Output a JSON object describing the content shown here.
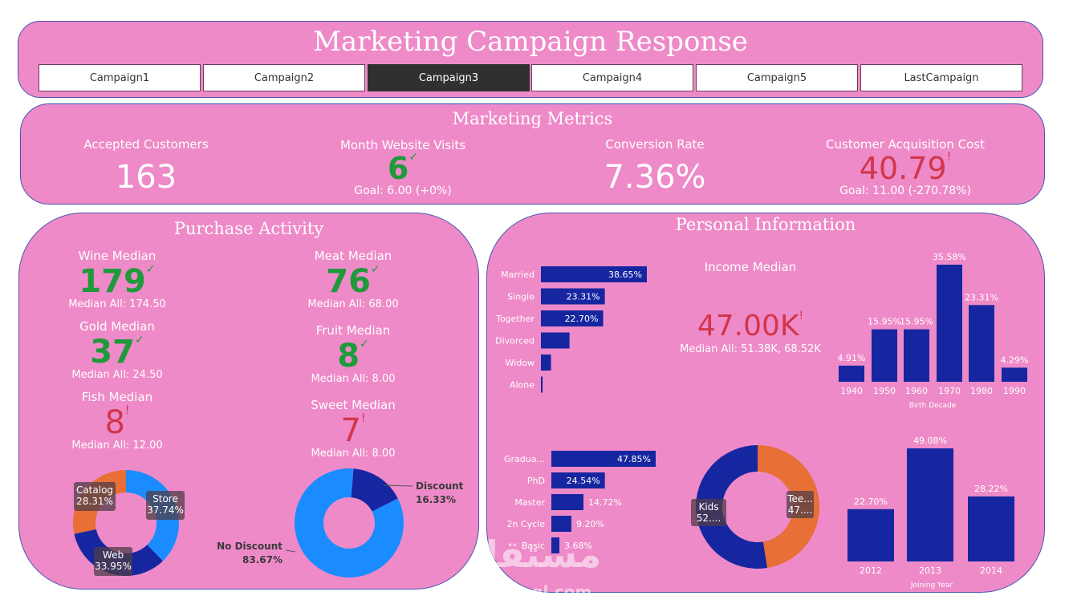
{
  "header": {
    "title": "Marketing Campaign Response",
    "tabs": [
      "Campaign1",
      "Campaign2",
      "Campaign3",
      "Campaign4",
      "Campaign5",
      "LastCampaign"
    ],
    "active_tab": "Campaign3"
  },
  "metrics": {
    "title": "Marketing Metrics",
    "accepted": {
      "label": "Accepted Customers",
      "value": "163"
    },
    "visits": {
      "label": "Month Website Visits",
      "value": "6",
      "mark": "✓",
      "goal": "Goal: 6.00 (+0%)"
    },
    "conversion": {
      "label": "Conversion Rate",
      "value": "7.36%"
    },
    "cac": {
      "label": "Customer Acquisition Cost",
      "value": "40.79",
      "mark": "!",
      "goal": "Goal: 11.00 (-270.78%)"
    }
  },
  "purchase": {
    "title": "Purchase Activity",
    "wine": {
      "label": "Wine Median",
      "value": "179",
      "mark": "✓",
      "sub": "Median All: 174.50"
    },
    "meat": {
      "label": "Meat Median",
      "value": "76",
      "mark": "✓",
      "sub": "Median All: 68.00"
    },
    "gold": {
      "label": "Gold Median",
      "value": "37",
      "mark": "✓",
      "sub": "Median All: 24.50"
    },
    "fruit": {
      "label": "Fruit Median",
      "value": "8",
      "mark": "✓",
      "sub": "Median All: 8.00"
    },
    "fish": {
      "label": "Fish Median",
      "value": "8",
      "mark": "!",
      "sub": "Median All: 12.00"
    },
    "sweet": {
      "label": "Sweet Median",
      "value": "7",
      "mark": "!",
      "sub": "Median All: 8.00"
    }
  },
  "personal": {
    "title": "Personal Information",
    "income": {
      "label": "Income Median",
      "value": "47.00K",
      "mark": "!",
      "sub": "Median All: 51.38K, 68.52K"
    }
  },
  "colors": {
    "panel": "#ee8ac8",
    "bar": "#1626a0",
    "good": "#1f9a3a",
    "bad": "#d2364a",
    "blue": "#1a8cff",
    "orange": "#e86f35",
    "navy": "#1626a0"
  },
  "watermark": {
    "arabic": "مستقل",
    "latin": "mostaql.com"
  },
  "chart_data": [
    {
      "type": "pie",
      "id": "channel",
      "title": "",
      "slices": [
        {
          "label": "Store",
          "value": 37.74,
          "text": "37.74%",
          "color": "#1a8cff"
        },
        {
          "label": "Web",
          "value": 33.95,
          "text": "33.95%",
          "color": "#1626a0"
        },
        {
          "label": "Catalog",
          "value": 28.31,
          "text": "28.31%",
          "color": "#e86f35"
        }
      ]
    },
    {
      "type": "pie",
      "id": "discount",
      "title": "",
      "slices": [
        {
          "label": "Discount",
          "value": 16.33,
          "text": "16.33%",
          "color": "#1626a0"
        },
        {
          "label": "No Discount",
          "value": 83.67,
          "text": "83.67%",
          "color": "#1a8cff"
        }
      ]
    },
    {
      "type": "bar",
      "id": "marital",
      "orientation": "horizontal",
      "categories": [
        "Married",
        "Single",
        "Together",
        "Divorced",
        "Widow",
        "Alone"
      ],
      "values": [
        38.65,
        23.31,
        22.7,
        10.43,
        3.68,
        0.61
      ],
      "labels": [
        "38.65%",
        "23.31%",
        "22.70%",
        "",
        "",
        ""
      ]
    },
    {
      "type": "bar",
      "id": "education",
      "orientation": "horizontal",
      "categories": [
        "Gradua...",
        "PhD",
        "Master",
        "2n Cycle",
        "Basic"
      ],
      "values": [
        47.85,
        24.54,
        14.72,
        9.2,
        3.68
      ],
      "labels": [
        "47.85%",
        "24.54%",
        "14.72%",
        "9.20%",
        "3.68%"
      ]
    },
    {
      "type": "bar",
      "id": "birth",
      "orientation": "vertical",
      "categories": [
        "1940",
        "1950",
        "1960",
        "1970",
        "1980",
        "1990"
      ],
      "values": [
        4.91,
        15.95,
        15.95,
        35.58,
        23.31,
        4.29
      ],
      "labels": [
        "4.91%",
        "15.95%",
        "15.95%",
        "35.58%",
        "23.31%",
        "4.29%"
      ],
      "xlabel": "Birth Decade"
    },
    {
      "type": "pie",
      "id": "children",
      "title": "",
      "slices": [
        {
          "label": "Tee...",
          "value": 47.5,
          "text": "47....",
          "color": "#e86f35"
        },
        {
          "label": "Kids",
          "value": 52.5,
          "text": "52....",
          "color": "#1626a0"
        }
      ]
    },
    {
      "type": "bar",
      "id": "joining",
      "orientation": "vertical",
      "categories": [
        "2012",
        "2013",
        "2014"
      ],
      "values": [
        22.7,
        49.08,
        28.22
      ],
      "labels": [
        "22.70%",
        "49.08%",
        "28.22%"
      ],
      "xlabel": "Joining Year"
    }
  ]
}
